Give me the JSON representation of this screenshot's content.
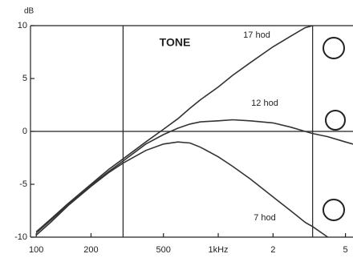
{
  "chart_data": {
    "type": "line",
    "title": "TONE",
    "y_unit": "dB",
    "log_x": true,
    "x": [
      100,
      120,
      150,
      200,
      250,
      300,
      400,
      500,
      600,
      700,
      800,
      1000,
      1200,
      1500,
      2000,
      2500,
      3000,
      3300,
      4000,
      5000,
      5500
    ],
    "series": [
      {
        "name": "17 hod",
        "color": "#333333",
        "values": [
          -9.5,
          -8.3,
          -6.8,
          -5,
          -3.6,
          -2.6,
          -1,
          0.2,
          1.2,
          2.2,
          3,
          4.2,
          5.3,
          6.5,
          8,
          9,
          9.8,
          10,
          null,
          null,
          null
        ]
      },
      {
        "name": "12 hod",
        "color": "#333333",
        "values": [
          -9.6,
          -8.4,
          -6.9,
          -5.1,
          -3.8,
          -2.8,
          -1.2,
          -0.3,
          0.3,
          0.7,
          0.9,
          1,
          1.1,
          1,
          0.8,
          0.4,
          0,
          -0.2,
          -0.5,
          -1,
          -1.2
        ]
      },
      {
        "name": "7 hod",
        "color": "#333333",
        "values": [
          -9.8,
          -8.6,
          -7,
          -5.2,
          -3.9,
          -3,
          -1.8,
          -1.2,
          -1,
          -1.1,
          -1.5,
          -2.4,
          -3.3,
          -4.5,
          -6.2,
          -7.5,
          -8.6,
          -9,
          -10,
          null,
          null
        ]
      }
    ],
    "xlim": [
      93,
      5500
    ],
    "ylim": [
      -10,
      10
    ],
    "xticks": [
      100,
      200,
      500,
      {
        "value": 1000,
        "label": "1kHz"
      },
      {
        "value": 2000,
        "label": "2"
      },
      {
        "value": 5000,
        "label": "5"
      }
    ],
    "yticks": [
      10,
      5,
      0,
      -5,
      -10
    ],
    "vlines": [
      300,
      3300
    ],
    "hlines": [
      0
    ]
  }
}
